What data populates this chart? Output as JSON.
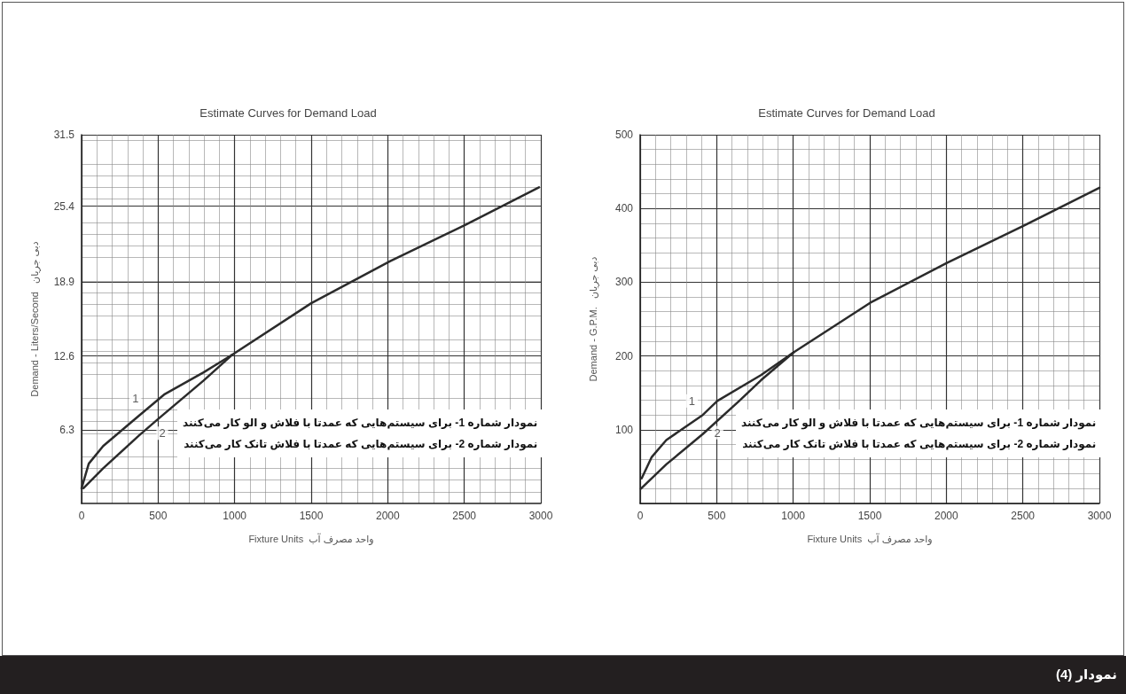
{
  "chart_data": [
    {
      "type": "line",
      "title": "Estimate Curves for Demand Load",
      "xlabel": "Fixture Units  واحد مصرف آب",
      "ylabel": "Demand - Liters/Second   دبی جریان",
      "xlim": [
        0,
        3000
      ],
      "ylim": [
        0,
        31.5
      ],
      "xticks": [
        0,
        500,
        1000,
        1500,
        2000,
        2500,
        3000
      ],
      "yticks": [
        6.3,
        12.6,
        18.9,
        25.4,
        31.5
      ],
      "grid": true,
      "marker": "none",
      "line_style": "solid",
      "series": [
        {
          "color": "#2b2b2b",
          "x": [
            0,
            47,
            141,
            375,
            539,
            797,
            984,
            1500,
            2016,
            2508,
            2988
          ],
          "values": [
            1.3,
            3.4,
            4.9,
            7.5,
            9.3,
            11.2,
            12.7,
            17.1,
            20.7,
            23.8,
            27.0
          ]
        },
        {
          "color": "#2b2b2b",
          "x": [
            12,
            141,
            375,
            499,
            797,
            984
          ],
          "values": [
            1.3,
            3.0,
            5.8,
            7.2,
            10.5,
            12.7
          ]
        }
      ],
      "annotations": [
        "نمودار شماره 1-  برای سیستم‌هایی که عمدتا با فلاش و الو کار می‌کنند",
        "نمودار شماره 2-  برای سیستم‌هایی که عمدتا با فلاش تانک کار می‌کنند",
        {
          "text": "1",
          "x": 352,
          "y": 9.0
        },
        {
          "text": "2",
          "x": 527,
          "y": 6.0
        },
        "نمودار (4)"
      ]
    },
    {
      "type": "line",
      "title": "Estimate Curves for Demand Load",
      "xlabel": "Fixture Units  واحد مصرف آب",
      "ylabel": "Demand - G.P.M.   دبی جریان",
      "xlim": [
        0,
        3000
      ],
      "ylim": [
        0,
        500
      ],
      "xticks": [
        0,
        500,
        1000,
        1500,
        2000,
        2500,
        3000
      ],
      "yticks": [
        100,
        200,
        300,
        400,
        500
      ],
      "grid": true,
      "marker": "none",
      "line_style": "solid",
      "series": [
        {
          "color": "#2b2b2b",
          "x": [
            10,
            76,
            171,
            409,
            504,
            789,
            1003,
            1502,
            2001,
            2500,
            3000
          ],
          "values": [
            34,
            63,
            86,
            120,
            139,
            174,
            205,
            272,
            326,
            376,
            428
          ]
        },
        {
          "color": "#2b2b2b",
          "x": [
            5,
            171,
            409,
            647,
            789,
            1003
          ],
          "values": [
            20,
            53,
            94,
            139,
            167,
            205
          ]
        }
      ],
      "annotations": [
        "نمودار شماره 1-  برای سیستم‌هایی که عمدتا با فلاش و الو کار می‌کنند",
        "نمودار شماره 2-  برای سیستم‌هایی که عمدتا با فلاش تانک کار می‌کنند",
        {
          "text": "1",
          "x": 338,
          "y": 139
        },
        {
          "text": "2",
          "x": 505,
          "y": 96
        }
      ]
    }
  ]
}
